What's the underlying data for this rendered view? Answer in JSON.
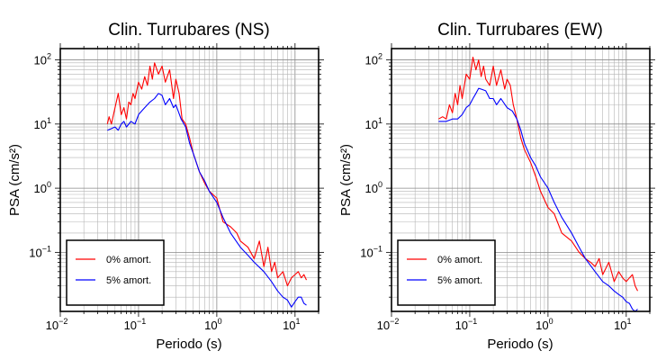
{
  "chart_data": [
    {
      "type": "line",
      "title": "Clin. Turrubares (NS)",
      "xlabel": "Periodo (s)",
      "ylabel": "PSA (cm/s²)",
      "xscale": "log",
      "yscale": "log",
      "xlim": [
        0.01,
        20
      ],
      "ylim": [
        0.012,
        150
      ],
      "grid": true,
      "legend_position": "bottom-left",
      "xticks": [
        {
          "base": "10",
          "exp": "−2",
          "value": 0.01
        },
        {
          "base": "10",
          "exp": "−1",
          "value": 0.1
        },
        {
          "base": "10",
          "exp": "0",
          "value": 1
        },
        {
          "base": "10",
          "exp": "1",
          "value": 10
        }
      ],
      "yticks": [
        {
          "base": "10",
          "exp": "−1",
          "value": 0.1
        },
        {
          "base": "10",
          "exp": "0",
          "value": 1
        },
        {
          "base": "10",
          "exp": "1",
          "value": 10
        },
        {
          "base": "10",
          "exp": "2",
          "value": 100
        }
      ],
      "series": [
        {
          "name": "0% amort.",
          "color": "#ff0000",
          "x": [
            0.04,
            0.042,
            0.045,
            0.05,
            0.055,
            0.06,
            0.065,
            0.07,
            0.075,
            0.08,
            0.085,
            0.09,
            0.1,
            0.11,
            0.12,
            0.13,
            0.14,
            0.15,
            0.16,
            0.18,
            0.2,
            0.22,
            0.25,
            0.28,
            0.3,
            0.33,
            0.36,
            0.4,
            0.45,
            0.5,
            0.6,
            0.7,
            0.8,
            1.0,
            1.2,
            1.5,
            1.8,
            2.0,
            2.5,
            3.0,
            3.5,
            4.0,
            4.5,
            5.0,
            5.5,
            6.0,
            7.0,
            8.0,
            9.0,
            10.0,
            11.0,
            12.0,
            13.0,
            14.0
          ],
          "y": [
            10,
            13,
            10,
            18,
            30,
            14,
            18,
            12,
            22,
            20,
            30,
            25,
            45,
            35,
            55,
            40,
            80,
            50,
            90,
            60,
            80,
            45,
            70,
            25,
            50,
            30,
            12,
            10,
            6,
            3.5,
            1.8,
            1.2,
            0.9,
            0.7,
            0.3,
            0.25,
            0.2,
            0.15,
            0.12,
            0.08,
            0.15,
            0.06,
            0.12,
            0.05,
            0.07,
            0.04,
            0.05,
            0.03,
            0.04,
            0.045,
            0.05,
            0.04,
            0.045,
            0.037
          ]
        },
        {
          "name": "5% amort.",
          "color": "#0000ff",
          "x": [
            0.04,
            0.045,
            0.05,
            0.055,
            0.06,
            0.065,
            0.07,
            0.08,
            0.09,
            0.1,
            0.11,
            0.12,
            0.14,
            0.16,
            0.18,
            0.2,
            0.22,
            0.25,
            0.28,
            0.3,
            0.35,
            0.4,
            0.45,
            0.5,
            0.6,
            0.7,
            0.8,
            1.0,
            1.2,
            1.5,
            2.0,
            2.5,
            3.0,
            4.0,
            5.0,
            6.0,
            7.0,
            8.0,
            9.0,
            10.0,
            11.0,
            12.0,
            13.0,
            14.0
          ],
          "y": [
            8,
            8.5,
            9,
            8,
            10,
            11,
            9,
            11,
            10,
            14,
            16,
            18,
            22,
            25,
            30,
            28,
            20,
            25,
            18,
            20,
            12,
            9,
            5,
            3.5,
            1.8,
            1.3,
            0.9,
            0.6,
            0.35,
            0.2,
            0.12,
            0.09,
            0.07,
            0.05,
            0.035,
            0.025,
            0.02,
            0.018,
            0.014,
            0.017,
            0.02,
            0.02,
            0.016,
            0.015
          ]
        }
      ]
    },
    {
      "type": "line",
      "title": "Clin. Turrubares (EW)",
      "xlabel": "Periodo (s)",
      "ylabel": "PSA (cm/s²)",
      "xscale": "log",
      "yscale": "log",
      "xlim": [
        0.01,
        20
      ],
      "ylim": [
        0.012,
        150
      ],
      "grid": true,
      "legend_position": "bottom-left",
      "xticks": [
        {
          "base": "10",
          "exp": "−2",
          "value": 0.01
        },
        {
          "base": "10",
          "exp": "−1",
          "value": 0.1
        },
        {
          "base": "10",
          "exp": "0",
          "value": 1
        },
        {
          "base": "10",
          "exp": "1",
          "value": 10
        }
      ],
      "yticks": [
        {
          "base": "10",
          "exp": "−1",
          "value": 0.1
        },
        {
          "base": "10",
          "exp": "0",
          "value": 1
        },
        {
          "base": "10",
          "exp": "1",
          "value": 10
        },
        {
          "base": "10",
          "exp": "2",
          "value": 100
        }
      ],
      "series": [
        {
          "name": "0% amort.",
          "color": "#ff0000",
          "x": [
            0.04,
            0.045,
            0.05,
            0.055,
            0.06,
            0.065,
            0.07,
            0.075,
            0.08,
            0.09,
            0.1,
            0.11,
            0.12,
            0.13,
            0.14,
            0.15,
            0.16,
            0.18,
            0.2,
            0.22,
            0.25,
            0.28,
            0.3,
            0.33,
            0.36,
            0.4,
            0.45,
            0.5,
            0.6,
            0.7,
            0.8,
            1.0,
            1.2,
            1.5,
            2.0,
            2.5,
            3.0,
            3.5,
            4.0,
            4.5,
            5.0,
            6.0,
            7.0,
            8.0,
            9.0,
            10.0,
            11.0,
            12.0,
            13.0,
            14.0
          ],
          "y": [
            12,
            13,
            12,
            20,
            15,
            30,
            20,
            40,
            25,
            60,
            50,
            110,
            70,
            100,
            55,
            80,
            50,
            40,
            80,
            40,
            70,
            35,
            50,
            40,
            20,
            12,
            6,
            4,
            2.5,
            1.5,
            0.9,
            0.5,
            0.4,
            0.2,
            0.15,
            0.1,
            0.08,
            0.07,
            0.06,
            0.08,
            0.045,
            0.07,
            0.035,
            0.05,
            0.04,
            0.035,
            0.04,
            0.045,
            0.03,
            0.025
          ]
        },
        {
          "name": "5% amort.",
          "color": "#0000ff",
          "x": [
            0.04,
            0.05,
            0.06,
            0.07,
            0.08,
            0.09,
            0.1,
            0.11,
            0.12,
            0.13,
            0.14,
            0.16,
            0.18,
            0.2,
            0.22,
            0.25,
            0.3,
            0.35,
            0.4,
            0.45,
            0.5,
            0.6,
            0.7,
            0.8,
            1.0,
            1.2,
            1.5,
            2.0,
            2.5,
            3.0,
            4.0,
            5.0,
            6.0,
            7.0,
            8.0,
            9.0,
            10.0,
            11.0,
            12.0,
            13.0,
            14.0
          ],
          "y": [
            11,
            11,
            12,
            12,
            14,
            18,
            20,
            25,
            30,
            36,
            35,
            33,
            25,
            25,
            20,
            25,
            18,
            16,
            12,
            8,
            5,
            3,
            2.2,
            1.5,
            1.0,
            0.6,
            0.35,
            0.2,
            0.12,
            0.08,
            0.05,
            0.035,
            0.03,
            0.025,
            0.022,
            0.02,
            0.017,
            0.016,
            0.013,
            0.012,
            0.013
          ]
        }
      ]
    }
  ]
}
